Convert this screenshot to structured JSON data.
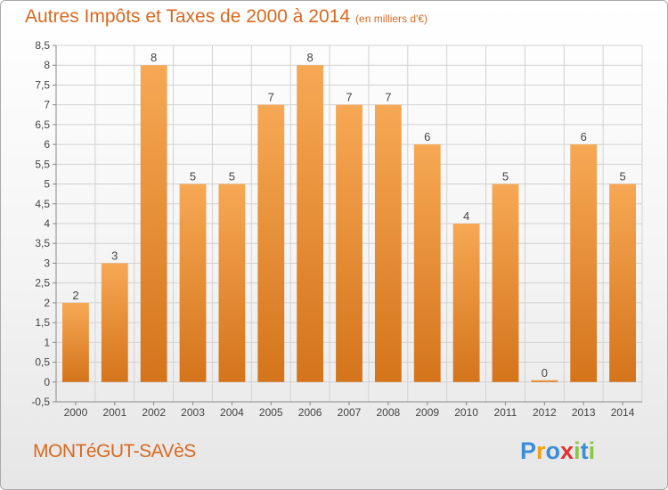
{
  "header": {
    "title": "Autres Impôts et Taxes de 2000 à 2014",
    "subtitle": "(en milliers d'€)"
  },
  "footer": {
    "commune": "MONTéGUT-SAVèS",
    "brand": {
      "letters": [
        "P",
        "r",
        "o",
        "x",
        "i",
        "t",
        "i"
      ],
      "colors": [
        "#3b8ed8",
        "#f2a20f",
        "#3b8ed8",
        "#e0322f",
        "#8cc63f",
        "#3b8ed8",
        "#8cc63f"
      ]
    }
  },
  "colors": {
    "bar_light": "#f7a854",
    "bar_dark": "#d4741b",
    "title": "#d8691f",
    "grid": "#d2d2d2",
    "text": "#444444"
  },
  "chart_data": {
    "type": "bar",
    "categories": [
      "2000",
      "2001",
      "2002",
      "2003",
      "2004",
      "2005",
      "2006",
      "2007",
      "2008",
      "2009",
      "2010",
      "2011",
      "2012",
      "2013",
      "2014"
    ],
    "values": [
      2,
      3,
      8,
      5,
      5,
      7,
      8,
      7,
      7,
      6,
      4,
      5,
      0,
      6,
      5
    ],
    "data_labels": [
      "2",
      "3",
      "8",
      "5",
      "5",
      "7",
      "8",
      "7",
      "7",
      "6",
      "4",
      "5",
      "0",
      "6",
      "5"
    ],
    "ylim": [
      -0.5,
      8.5
    ],
    "yticks": [
      -0.5,
      0,
      0.5,
      1,
      1.5,
      2,
      2.5,
      3,
      3.5,
      4,
      4.5,
      5,
      5.5,
      6,
      6.5,
      7,
      7.5,
      8,
      8.5
    ],
    "ytick_labels": [
      "-0,5",
      "0",
      "0,5",
      "1",
      "1,5",
      "2",
      "2,5",
      "3",
      "3,5",
      "4",
      "4,5",
      "5",
      "5,5",
      "6",
      "6,5",
      "7",
      "7,5",
      "8",
      "8,5"
    ],
    "grid": true,
    "xlabel": "",
    "ylabel": ""
  }
}
